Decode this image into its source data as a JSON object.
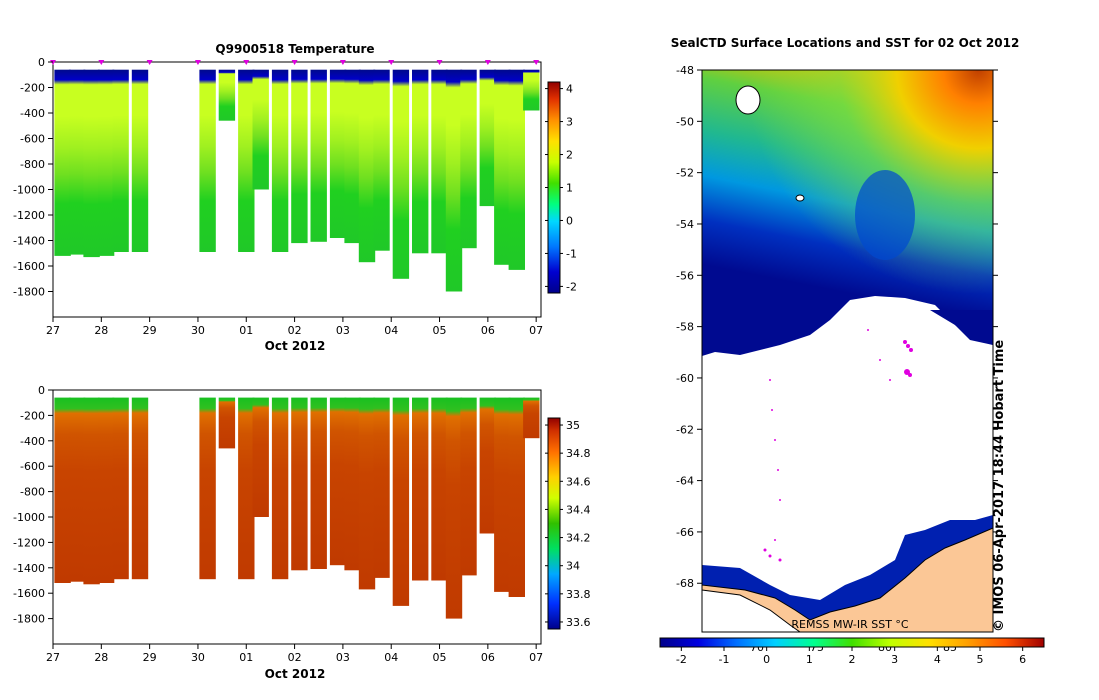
{
  "chart_data": [
    {
      "type": "heatmap",
      "title": "Q9900518  Temperature",
      "xlabel": "Oct 2012",
      "ylabel": "",
      "x_tick_labels": [
        "27",
        "28",
        "29",
        "30",
        "01",
        "02",
        "03",
        "04",
        "05",
        "06",
        "07"
      ],
      "y_tick_labels": [
        "0",
        "-200",
        "-400",
        "-600",
        "-800",
        "-1000",
        "-1200",
        "-1400",
        "-1600",
        "-1800"
      ],
      "ylim": [
        -2000,
        0
      ],
      "colorbar": {
        "ticks": [
          "-2",
          "-1",
          "0",
          "1",
          "2",
          "3",
          "4"
        ],
        "range": [
          -2.2,
          4.2
        ]
      },
      "profiles": [
        {
          "x": 27.2,
          "max_depth": -1520
        },
        {
          "x": 27.5,
          "max_depth": -1510
        },
        {
          "x": 27.8,
          "max_depth": -1530
        },
        {
          "x": 28.1,
          "max_depth": -1520
        },
        {
          "x": 28.4,
          "max_depth": -1490
        },
        {
          "x": 28.8,
          "max_depth": -1490
        },
        {
          "x": 30.2,
          "max_depth": -1490
        },
        {
          "x": 30.6,
          "max_depth": -460
        },
        {
          "x": 31.0,
          "max_depth": -1490
        },
        {
          "x": 31.3,
          "max_depth": -1000
        },
        {
          "x": 31.7,
          "max_depth": -1490
        },
        {
          "x": 32.1,
          "max_depth": -1420
        },
        {
          "x": 32.5,
          "max_depth": -1410
        },
        {
          "x": 32.9,
          "max_depth": -1380
        },
        {
          "x": 33.2,
          "max_depth": -1420
        },
        {
          "x": 33.5,
          "max_depth": -1570
        },
        {
          "x": 33.8,
          "max_depth": -1480
        },
        {
          "x": 34.2,
          "max_depth": -1700
        },
        {
          "x": 34.6,
          "max_depth": -1500
        },
        {
          "x": 35.0,
          "max_depth": -1500
        },
        {
          "x": 35.3,
          "max_depth": -1800
        },
        {
          "x": 35.6,
          "max_depth": -1460
        },
        {
          "x": 36.0,
          "max_depth": -1130
        },
        {
          "x": 36.3,
          "max_depth": -1590
        },
        {
          "x": 36.6,
          "max_depth": -1630
        },
        {
          "x": 36.9,
          "max_depth": -380
        }
      ],
      "profile_markers_x": [
        27,
        28,
        29,
        30,
        31,
        32,
        33,
        34,
        35,
        36,
        37
      ]
    },
    {
      "type": "heatmap",
      "title": "",
      "xlabel": "Oct 2012",
      "ylabel": "",
      "x_tick_labels": [
        "27",
        "28",
        "29",
        "30",
        "01",
        "02",
        "03",
        "04",
        "05",
        "06",
        "07"
      ],
      "y_tick_labels": [
        "0",
        "-200",
        "-400",
        "-600",
        "-800",
        "-1000",
        "-1200",
        "-1400",
        "-1600",
        "-1800"
      ],
      "ylim": [
        -2000,
        0
      ],
      "colorbar": {
        "ticks": [
          "33.6",
          "33.8",
          "34",
          "34.2",
          "34.4",
          "34.6",
          "34.8",
          "35"
        ],
        "range": [
          33.55,
          35.05
        ]
      }
    },
    {
      "type": "heatmap",
      "title": "SealCTD Surface Locations and SST for 02 Oct 2012",
      "xlabel": "",
      "ylabel": "",
      "y_tick_labels": [
        "-48",
        "-50",
        "-52",
        "-54",
        "-56",
        "-58",
        "-60",
        "-62",
        "-64",
        "-66",
        "-68"
      ],
      "ylim": [
        -69.9,
        -48
      ],
      "colorbar": {
        "ticks": [
          "-2",
          "-1",
          "0",
          "1",
          "2",
          "3",
          "4",
          "5",
          "6"
        ],
        "range": [
          -2.5,
          6.5
        ]
      },
      "longitude_labels": [
        "70",
        "75",
        "80",
        "85"
      ],
      "product": "REMSS MW-IR SST °C",
      "stamp": "© IMOS 06-Apr-2017 18:44 Hobart Time"
    }
  ]
}
